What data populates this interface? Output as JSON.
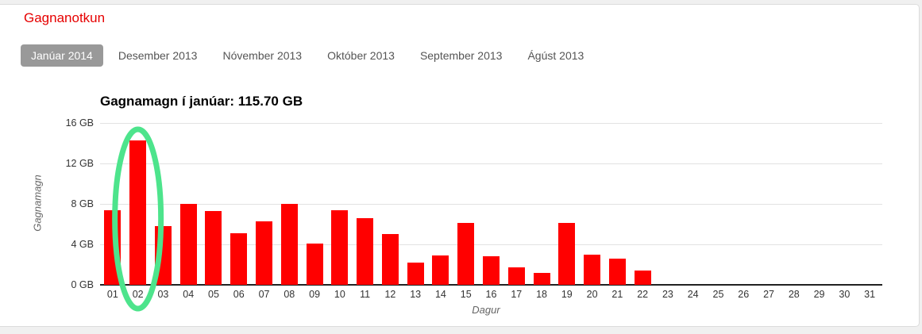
{
  "header": {
    "title": "Gagnanotkun"
  },
  "tabs": [
    {
      "label": "Janúar 2014",
      "selected": true
    },
    {
      "label": "Desember 2013",
      "selected": false
    },
    {
      "label": "Nóvember 2013",
      "selected": false
    },
    {
      "label": "Október 2013",
      "selected": false
    },
    {
      "label": "September 2013",
      "selected": false
    },
    {
      "label": "Ágúst 2013",
      "selected": false
    }
  ],
  "chart": {
    "title": "Gagnamagn í janúar: 115.70 GB"
  },
  "chart_data": {
    "type": "bar",
    "title": "Gagnamagn í janúar: 115.70 GB",
    "xlabel": "Dagur",
    "ylabel": "Gagnamagn",
    "categories": [
      "01",
      "02",
      "03",
      "04",
      "05",
      "06",
      "07",
      "08",
      "09",
      "10",
      "11",
      "12",
      "13",
      "14",
      "15",
      "16",
      "17",
      "18",
      "19",
      "20",
      "21",
      "22",
      "23",
      "24",
      "25",
      "26",
      "27",
      "28",
      "29",
      "30",
      "31"
    ],
    "values": [
      7.4,
      14.3,
      5.8,
      8.0,
      7.3,
      5.1,
      6.3,
      8.0,
      4.1,
      7.4,
      6.6,
      5.0,
      2.2,
      2.9,
      6.1,
      2.8,
      1.7,
      1.2,
      6.1,
      3.0,
      2.6,
      1.4,
      0,
      0,
      0,
      0,
      0,
      0,
      0,
      0,
      0
    ],
    "total_label": "115.70 GB",
    "ylim": [
      0,
      16
    ],
    "ytick_values": [
      0,
      4,
      8,
      12,
      16
    ],
    "ytick_labels": [
      "0 GB",
      "4 GB",
      "8 GB",
      "12 GB",
      "16 GB"
    ],
    "grid": true,
    "bar_color": "#ff0000",
    "annotation": {
      "shape": "ellipse",
      "highlighted_day": "02",
      "day_index": 2,
      "color": "#4de48c"
    }
  }
}
